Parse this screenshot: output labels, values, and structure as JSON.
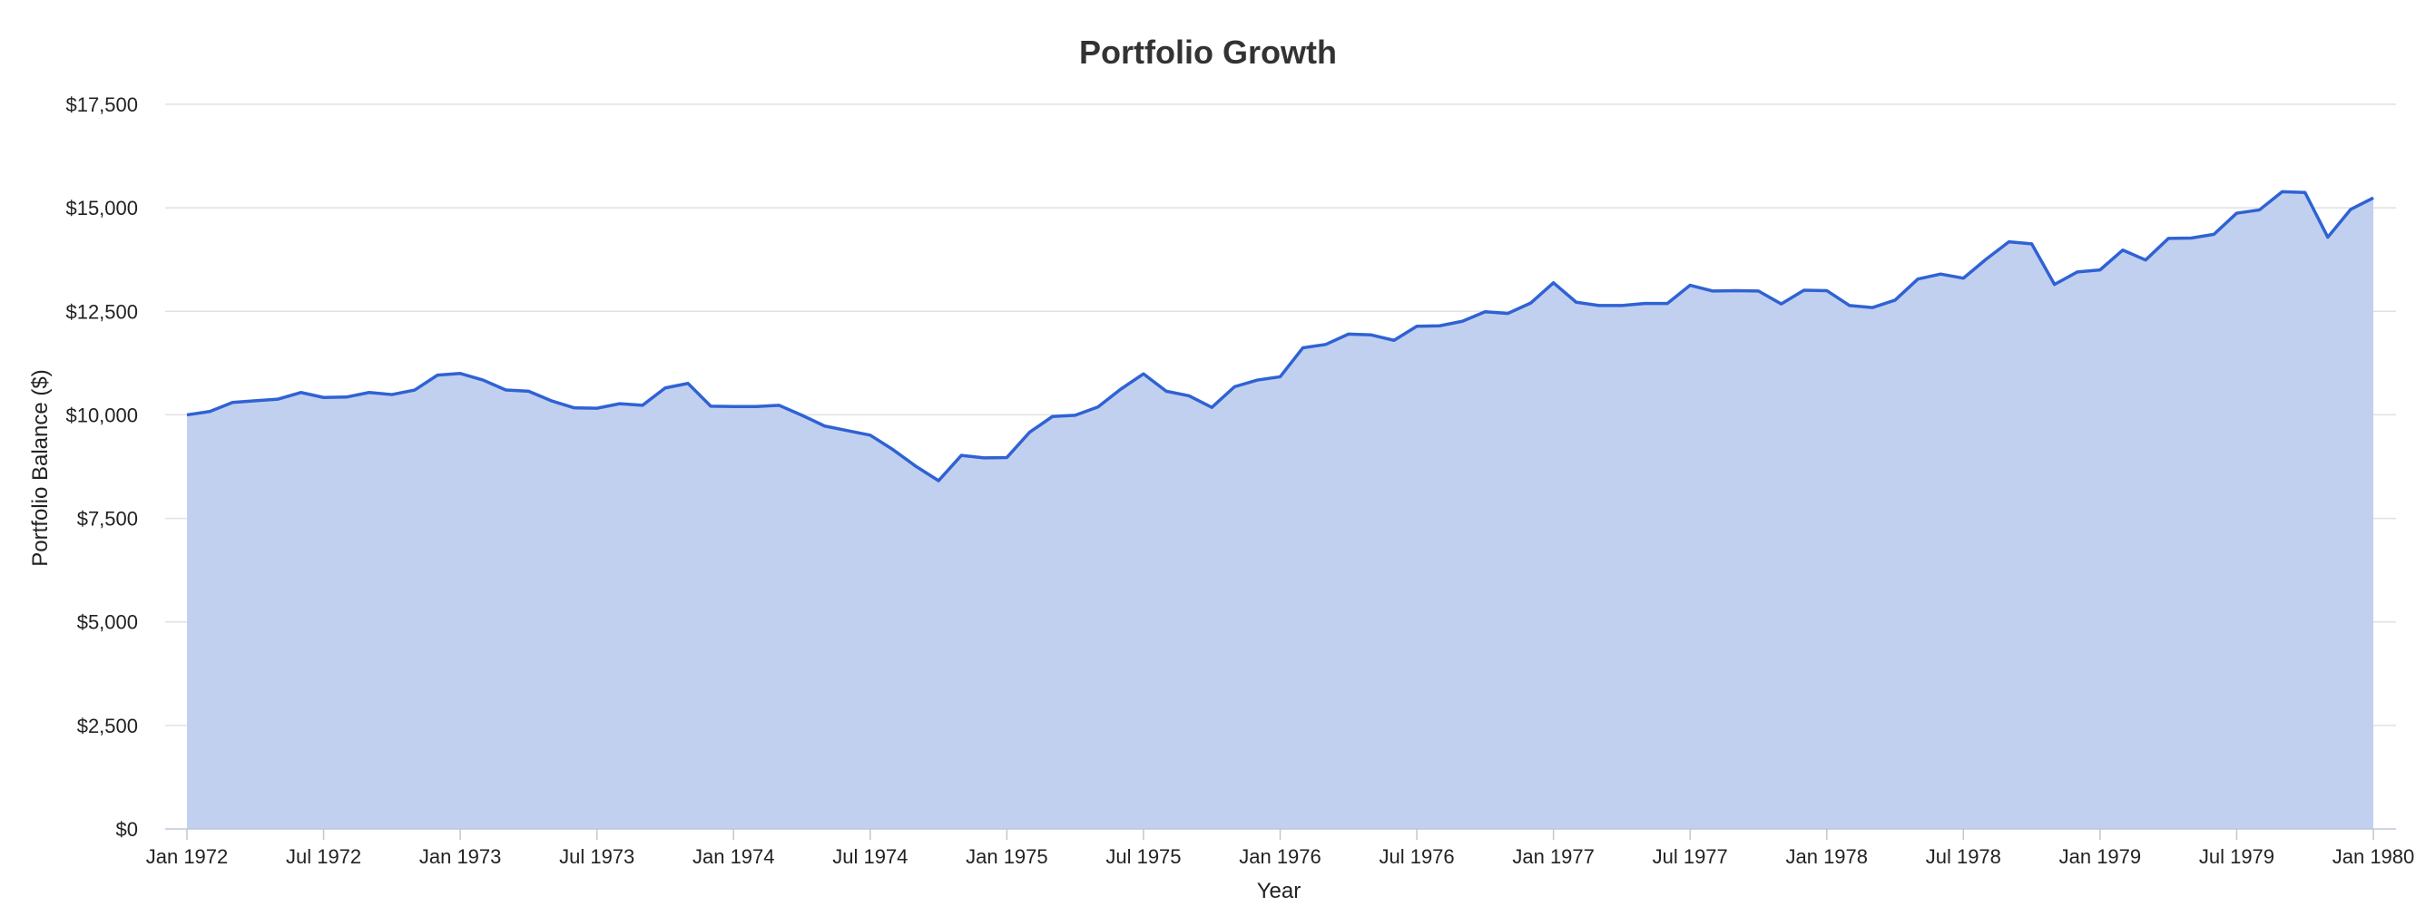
{
  "chart_data": {
    "type": "area",
    "title": "Portfolio Growth",
    "xlabel": "Year",
    "ylabel": "Portfolio Balance ($)",
    "ylim": [
      0,
      17500
    ],
    "y_ticks": [
      0,
      2500,
      5000,
      7500,
      10000,
      12500,
      15000,
      17500
    ],
    "y_tick_labels": [
      "$0",
      "$2,500",
      "$5,000",
      "$7,500",
      "$10,000",
      "$12,500",
      "$15,000",
      "$17,500"
    ],
    "x_tick_labels": [
      "Jan 1972",
      "Jul 1972",
      "Jan 1973",
      "Jul 1973",
      "Jan 1974",
      "Jul 1974",
      "Jan 1975",
      "Jul 1975",
      "Jan 1976",
      "Jul 1976",
      "Jan 1977",
      "Jul 1977",
      "Jan 1978",
      "Jul 1978",
      "Jan 1979",
      "Jul 1979",
      "Jan 1980"
    ],
    "grid": true,
    "legend": "none",
    "colors": {
      "line": "#2f62d4",
      "fill": "#c2d0f0"
    },
    "series": [
      {
        "x": [
          "1972-01",
          "1972-02",
          "1972-03",
          "1972-04",
          "1972-05",
          "1972-06",
          "1972-07",
          "1972-08",
          "1972-09",
          "1972-10",
          "1972-11",
          "1972-12",
          "1973-01",
          "1973-02",
          "1973-03",
          "1973-04",
          "1973-05",
          "1973-06",
          "1973-07",
          "1973-08",
          "1973-09",
          "1973-10",
          "1973-11",
          "1973-12",
          "1974-01",
          "1974-02",
          "1974-03",
          "1974-04",
          "1974-05",
          "1974-06",
          "1974-07",
          "1974-08",
          "1974-09",
          "1974-10",
          "1974-11",
          "1974-12",
          "1975-01",
          "1975-02",
          "1975-03",
          "1975-04",
          "1975-05",
          "1975-06",
          "1975-07",
          "1975-08",
          "1975-09",
          "1975-10",
          "1975-11",
          "1975-12",
          "1976-01",
          "1976-02",
          "1976-03",
          "1976-04",
          "1976-05",
          "1976-06",
          "1976-07",
          "1976-08",
          "1976-09",
          "1976-10",
          "1976-11",
          "1976-12",
          "1977-01",
          "1977-02",
          "1977-03",
          "1977-04",
          "1977-05",
          "1977-06",
          "1977-07",
          "1977-08",
          "1977-09",
          "1977-10",
          "1977-11",
          "1977-12",
          "1978-01",
          "1978-02",
          "1978-03",
          "1978-04",
          "1978-05",
          "1978-06",
          "1978-07",
          "1978-08",
          "1978-09",
          "1978-10",
          "1978-11",
          "1978-12",
          "1979-01",
          "1979-02",
          "1979-03",
          "1979-04",
          "1979-05",
          "1979-06",
          "1979-07",
          "1979-08",
          "1979-09",
          "1979-10",
          "1979-11",
          "1979-12",
          "1980-01"
        ],
        "values": [
          10000,
          10080,
          10300,
          10340,
          10380,
          10540,
          10420,
          10430,
          10540,
          10490,
          10600,
          10960,
          11000,
          10840,
          10600,
          10570,
          10340,
          10170,
          10160,
          10270,
          10230,
          10650,
          10760,
          10210,
          10200,
          10200,
          10230,
          9990,
          9730,
          9620,
          9510,
          9160,
          8760,
          8410,
          9020,
          8960,
          8970,
          9580,
          9960,
          9990,
          10190,
          10620,
          10990,
          10570,
          10460,
          10180,
          10680,
          10840,
          10920,
          11620,
          11700,
          11950,
          11930,
          11800,
          12140,
          12150,
          12260,
          12490,
          12450,
          12700,
          13190,
          12720,
          12640,
          12640,
          12690,
          12690,
          13130,
          12990,
          13000,
          12990,
          12680,
          13010,
          13000,
          12640,
          12590,
          12770,
          13280,
          13400,
          13300,
          13760,
          14180,
          14130,
          13150,
          13450,
          13500,
          13980,
          13740,
          14260,
          14270,
          14360,
          14870,
          14950,
          15390,
          15370,
          14290,
          14960,
          15240
        ]
      }
    ]
  }
}
